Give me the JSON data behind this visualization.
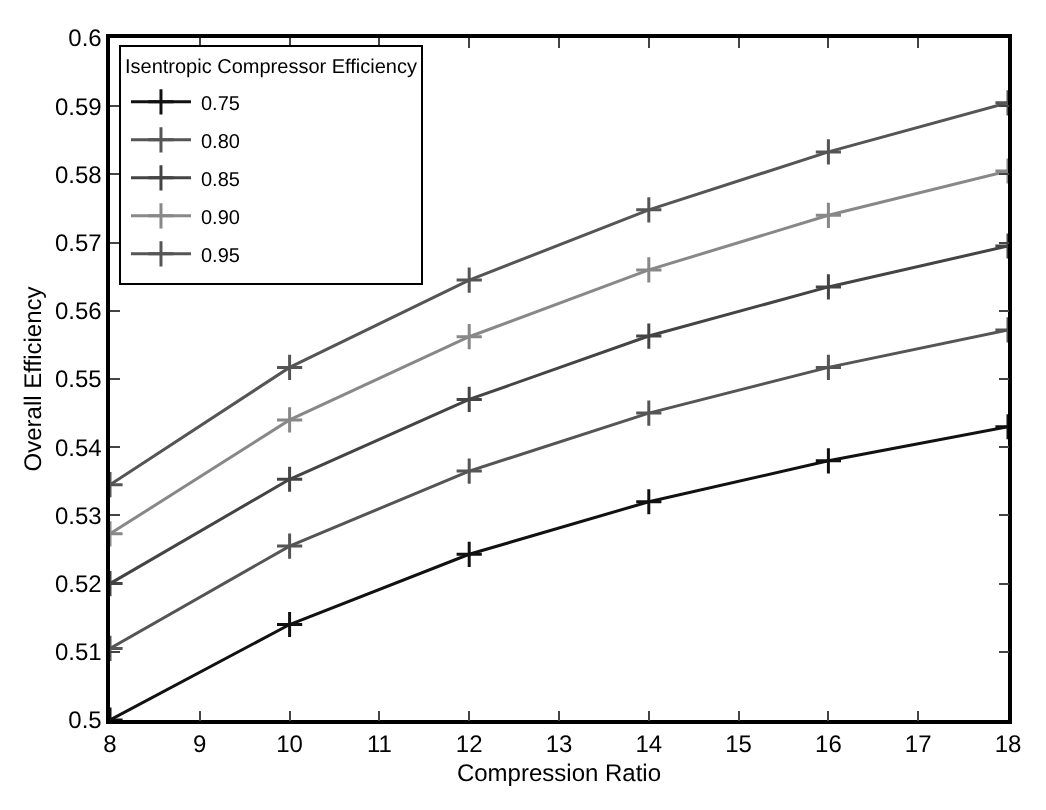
{
  "chart_data": {
    "type": "line",
    "xlabel": "Compression Ratio",
    "ylabel": "Overall Efficiency",
    "legend_title": "Isentropic Compressor Efficiency",
    "x": [
      8,
      10,
      12,
      14,
      16,
      18
    ],
    "series": [
      {
        "name": "0.75",
        "color": "#111111",
        "values": [
          0.5,
          0.514,
          0.5243,
          0.532,
          0.538,
          0.543
        ]
      },
      {
        "name": "0.80",
        "color": "#555555",
        "values": [
          0.5105,
          0.5255,
          0.5365,
          0.545,
          0.5517,
          0.5572
        ]
      },
      {
        "name": "0.85",
        "color": "#444444",
        "values": [
          0.52,
          0.5353,
          0.547,
          0.5563,
          0.5635,
          0.5695
        ]
      },
      {
        "name": "0.90",
        "color": "#888888",
        "values": [
          0.5273,
          0.544,
          0.5562,
          0.566,
          0.574,
          0.5805
        ]
      },
      {
        "name": "0.95",
        "color": "#555555",
        "values": [
          0.5345,
          0.5517,
          0.5645,
          0.5748,
          0.5833,
          0.5905
        ]
      }
    ],
    "xlim": [
      8,
      18
    ],
    "xticks": [
      8,
      9,
      10,
      11,
      12,
      13,
      14,
      15,
      16,
      17,
      18
    ],
    "ylim": [
      0.5,
      0.6
    ],
    "yticks": [
      0.5,
      0.51,
      0.52,
      0.53,
      0.54,
      0.55,
      0.56,
      0.57,
      0.58,
      0.59,
      0.6
    ],
    "marker": "cross",
    "line_style": "solid",
    "legend": "top left"
  }
}
